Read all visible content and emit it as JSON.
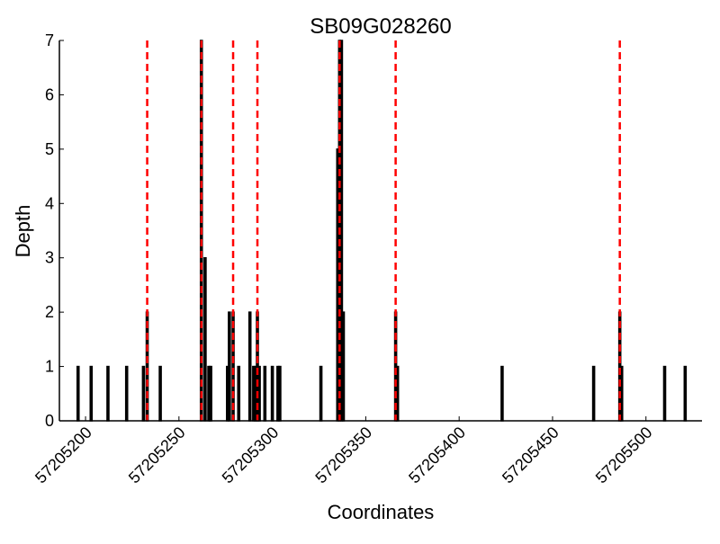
{
  "chart_data": {
    "type": "bar",
    "title": "SB09G028260",
    "xlabel": "Coordinates",
    "ylabel": "Depth",
    "xlim": [
      57205186,
      57205530
    ],
    "ylim": [
      0,
      7
    ],
    "xticks": [
      57205200,
      57205250,
      57205300,
      57205350,
      57205400,
      57205450,
      57205500
    ],
    "yticks": [
      0,
      1,
      2,
      3,
      4,
      5,
      6,
      7
    ],
    "grid": false,
    "bar_color": "#000000",
    "marker_color": "#ff0000",
    "bars": [
      {
        "x": 57205196,
        "y": 1
      },
      {
        "x": 57205203,
        "y": 1
      },
      {
        "x": 57205212,
        "y": 1
      },
      {
        "x": 57205222,
        "y": 1
      },
      {
        "x": 57205231,
        "y": 1
      },
      {
        "x": 57205233,
        "y": 2
      },
      {
        "x": 57205240,
        "y": 1
      },
      {
        "x": 57205262,
        "y": 7
      },
      {
        "x": 57205264,
        "y": 3
      },
      {
        "x": 57205266,
        "y": 1
      },
      {
        "x": 57205267,
        "y": 1
      },
      {
        "x": 57205276,
        "y": 1
      },
      {
        "x": 57205277,
        "y": 2
      },
      {
        "x": 57205279,
        "y": 2
      },
      {
        "x": 57205282,
        "y": 1
      },
      {
        "x": 57205288,
        "y": 2
      },
      {
        "x": 57205290,
        "y": 1
      },
      {
        "x": 57205291,
        "y": 1
      },
      {
        "x": 57205292,
        "y": 2
      },
      {
        "x": 57205293,
        "y": 1
      },
      {
        "x": 57205296,
        "y": 1
      },
      {
        "x": 57205300,
        "y": 1
      },
      {
        "x": 57205303,
        "y": 1
      },
      {
        "x": 57205304,
        "y": 1
      },
      {
        "x": 57205326,
        "y": 1
      },
      {
        "x": 57205335,
        "y": 5
      },
      {
        "x": 57205336,
        "y": 7
      },
      {
        "x": 57205337,
        "y": 7
      },
      {
        "x": 57205338,
        "y": 2
      },
      {
        "x": 57205366,
        "y": 2
      },
      {
        "x": 57205367,
        "y": 1
      },
      {
        "x": 57205423,
        "y": 1
      },
      {
        "x": 57205472,
        "y": 1
      },
      {
        "x": 57205486,
        "y": 2
      },
      {
        "x": 57205487,
        "y": 1
      },
      {
        "x": 57205510,
        "y": 1
      },
      {
        "x": 57205521,
        "y": 1
      }
    ],
    "vlines": [
      57205233,
      57205262,
      57205279,
      57205292,
      57205336,
      57205366,
      57205486
    ]
  }
}
